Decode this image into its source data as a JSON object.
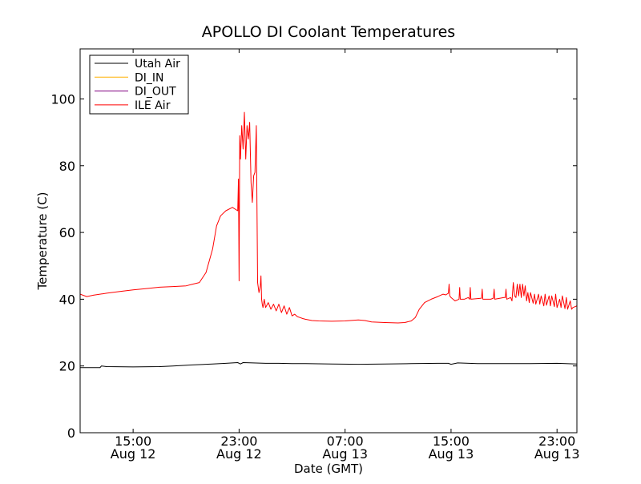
{
  "chart_data": {
    "type": "line",
    "title": "APOLLO DI Coolant Temperatures",
    "xlabel": "Date (GMT)",
    "ylabel": "Temperature (C)",
    "xlim": [
      11,
      48.5
    ],
    "ylim": [
      0,
      115
    ],
    "grid": false,
    "legend_position": "upper-left",
    "x_unit": "hours since 00:00 Aug 12 (GMT)",
    "x_ticks": [
      {
        "value": 15,
        "time": "15:00",
        "date": "Aug 12"
      },
      {
        "value": 23,
        "time": "23:00",
        "date": "Aug 12"
      },
      {
        "value": 31,
        "time": "07:00",
        "date": "Aug 13"
      },
      {
        "value": 39,
        "time": "15:00",
        "date": "Aug 13"
      },
      {
        "value": 47,
        "time": "23:00",
        "date": "Aug 13"
      }
    ],
    "y_ticks": [
      {
        "value": 0,
        "label": "0"
      },
      {
        "value": 20,
        "label": "20"
      },
      {
        "value": 40,
        "label": "40"
      },
      {
        "value": 60,
        "label": "60"
      },
      {
        "value": 80,
        "label": "80"
      },
      {
        "value": 100,
        "label": "100"
      }
    ],
    "series": [
      {
        "name": "Utah Air",
        "color": "#000000",
        "x": [
          11.0,
          12.5,
          12.6,
          13.0,
          15.0,
          17.0,
          18.0,
          19.5,
          21.0,
          22.0,
          22.9,
          23.1,
          23.3,
          25.0,
          26.0,
          27.0,
          28.0,
          30.0,
          32.0,
          34.0,
          36.0,
          38.0,
          38.8,
          39.0,
          39.5,
          41.0,
          43.0,
          45.0,
          47.0,
          48.5
        ],
        "y": [
          19.5,
          19.5,
          20.0,
          19.8,
          19.7,
          19.8,
          20.0,
          20.3,
          20.6,
          20.8,
          21.0,
          20.6,
          21.0,
          20.8,
          20.8,
          20.7,
          20.7,
          20.6,
          20.5,
          20.6,
          20.7,
          20.8,
          20.8,
          20.5,
          20.9,
          20.7,
          20.7,
          20.7,
          20.8,
          20.6
        ]
      },
      {
        "name": "DI_IN",
        "color": "#ffb000",
        "x": [],
        "y": []
      },
      {
        "name": "DI_OUT",
        "color": "#800080",
        "x": [],
        "y": []
      },
      {
        "name": "ILE Air",
        "color": "#ff0000",
        "x": [
          11.0,
          11.5,
          12.0,
          13.0,
          14.0,
          15.0,
          16.0,
          17.0,
          18.0,
          19.0,
          19.5,
          20.0,
          20.5,
          21.0,
          21.3,
          21.6,
          22.0,
          22.5,
          22.9,
          22.95,
          23.0,
          23.05,
          23.1,
          23.2,
          23.3,
          23.4,
          23.5,
          23.6,
          23.7,
          23.8,
          23.9,
          24.0,
          24.1,
          24.2,
          24.3,
          24.4,
          24.5,
          24.6,
          24.65,
          24.7,
          24.75,
          24.8,
          24.9,
          25.0,
          25.2,
          25.4,
          25.6,
          25.8,
          26.0,
          26.2,
          26.4,
          26.6,
          26.8,
          27.0,
          27.2,
          27.4,
          27.6,
          27.8,
          28.0,
          28.5,
          29.0,
          30.0,
          31.0,
          32.0,
          32.5,
          33.0,
          34.0,
          35.0,
          35.5,
          36.0,
          36.3,
          36.6,
          37.0,
          37.5,
          38.0,
          38.4,
          38.6,
          38.8,
          38.85,
          38.9,
          39.0,
          39.3,
          39.6,
          39.65,
          39.7,
          40.0,
          40.3,
          40.4,
          40.45,
          40.5,
          41.0,
          41.3,
          41.35,
          41.4,
          42.0,
          42.2,
          42.25,
          42.3,
          43.0,
          43.1,
          43.15,
          43.2,
          43.5,
          43.6,
          43.7,
          43.8,
          43.9,
          44.0,
          44.1,
          44.2,
          44.3,
          44.4,
          44.5,
          44.6,
          44.7,
          44.8,
          44.9,
          45.0,
          45.2,
          45.3,
          45.4,
          45.6,
          45.7,
          45.8,
          46.0,
          46.1,
          46.2,
          46.4,
          46.5,
          46.6,
          46.8,
          46.9,
          47.0,
          47.2,
          47.3,
          47.4,
          47.6,
          47.7,
          47.8,
          48.0,
          48.1,
          48.2,
          48.5
        ],
        "y": [
          41.5,
          40.8,
          41.2,
          41.8,
          42.3,
          42.8,
          43.2,
          43.6,
          43.8,
          44.0,
          44.5,
          45.0,
          48.0,
          55.0,
          62.0,
          65.0,
          66.5,
          67.5,
          66.5,
          76.0,
          45.5,
          89.0,
          82.0,
          92.0,
          85.0,
          96.0,
          82.0,
          92.0,
          88.0,
          93.0,
          75.0,
          69.0,
          77.0,
          78.0,
          92.0,
          45.0,
          42.0,
          44.0,
          47.0,
          40.0,
          38.5,
          37.5,
          40.0,
          37.5,
          39.0,
          37.0,
          38.5,
          36.5,
          38.5,
          36.0,
          38.0,
          35.5,
          37.5,
          35.0,
          35.5,
          34.8,
          34.5,
          34.2,
          34.0,
          33.6,
          33.5,
          33.4,
          33.5,
          33.8,
          33.6,
          33.2,
          33.0,
          32.9,
          33.0,
          33.5,
          34.5,
          37.0,
          39.0,
          40.0,
          40.8,
          41.5,
          41.3,
          41.8,
          44.5,
          41.0,
          40.5,
          39.5,
          40.0,
          43.5,
          40.0,
          40.0,
          40.5,
          40.0,
          43.5,
          40.0,
          40.2,
          40.3,
          43.0,
          40.0,
          40.0,
          40.3,
          43.0,
          40.0,
          40.5,
          40.5,
          43.0,
          40.0,
          40.5,
          39.5,
          45.0,
          41.0,
          40.5,
          44.5,
          41.0,
          44.5,
          40.5,
          44.5,
          41.0,
          44.0,
          39.5,
          42.0,
          39.0,
          42.0,
          38.8,
          41.5,
          38.5,
          41.5,
          38.5,
          41.0,
          38.0,
          41.5,
          38.2,
          41.0,
          38.0,
          41.0,
          37.8,
          41.5,
          37.5,
          40.0,
          37.5,
          41.0,
          37.2,
          40.5,
          37.0,
          39.5,
          37.0,
          37.5,
          38.0
        ]
      }
    ]
  }
}
